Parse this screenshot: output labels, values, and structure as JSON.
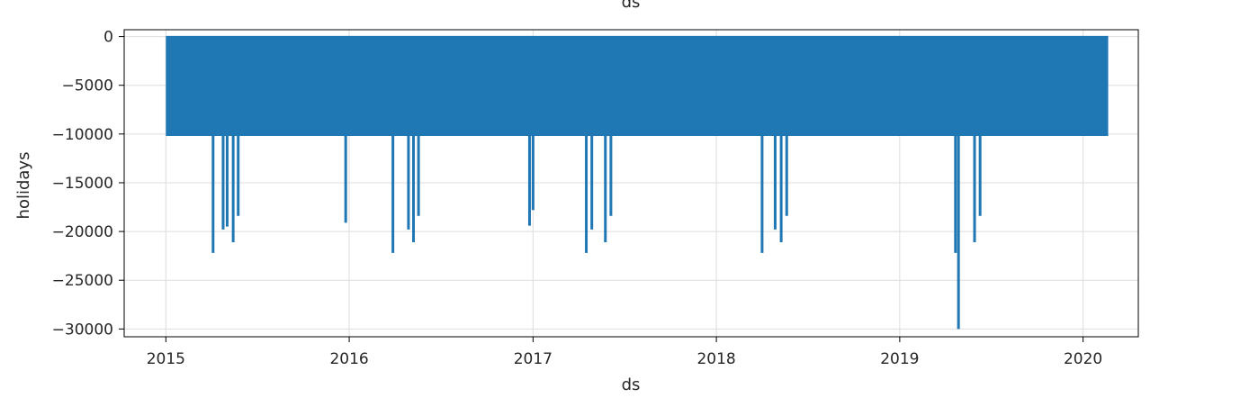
{
  "chart_data": {
    "type": "line",
    "title": "",
    "top_label": "ds",
    "xlabel": "ds",
    "ylabel": "holidays",
    "x_ticks": [
      "2015",
      "2016",
      "2017",
      "2018",
      "2019",
      "2020"
    ],
    "y_ticks": [
      "0",
      "−5000",
      "−10000",
      "−15000",
      "−20000",
      "−25000",
      "−30000"
    ],
    "y_tick_values": [
      0,
      -5000,
      -10000,
      -15000,
      -20000,
      -25000,
      -30000
    ],
    "xlim": [
      "2014-10-10",
      "2020-04-20"
    ],
    "ylim": [
      -30800,
      700
    ],
    "x_range": [
      "2015-01-01",
      "2020-02-20"
    ],
    "grid": true,
    "color": "#1f77b4",
    "series": [
      {
        "baseline": 0,
        "band_low": -10200,
        "spikes": [
          {
            "date": "2015-04-05",
            "value": -22200
          },
          {
            "date": "2015-04-25",
            "value": -19800
          },
          {
            "date": "2015-05-03",
            "value": -19500
          },
          {
            "date": "2015-05-15",
            "value": -21100
          },
          {
            "date": "2015-05-25",
            "value": -18400
          },
          {
            "date": "2015-12-25",
            "value": -19100
          },
          {
            "date": "2016-03-28",
            "value": -22200
          },
          {
            "date": "2016-04-28",
            "value": -19800
          },
          {
            "date": "2016-05-08",
            "value": -21100
          },
          {
            "date": "2016-05-18",
            "value": -18400
          },
          {
            "date": "2016-12-25",
            "value": -19400
          },
          {
            "date": "2017-01-01",
            "value": -17800
          },
          {
            "date": "2017-04-17",
            "value": -22200
          },
          {
            "date": "2017-04-28",
            "value": -19800
          },
          {
            "date": "2017-05-25",
            "value": -21100
          },
          {
            "date": "2017-06-05",
            "value": -18400
          },
          {
            "date": "2018-04-02",
            "value": -22200
          },
          {
            "date": "2018-04-28",
            "value": -19800
          },
          {
            "date": "2018-05-10",
            "value": -21100
          },
          {
            "date": "2018-05-21",
            "value": -18400
          },
          {
            "date": "2019-04-22",
            "value": -22200
          },
          {
            "date": "2019-04-28",
            "value": -30000
          },
          {
            "date": "2019-05-30",
            "value": -21100
          },
          {
            "date": "2019-06-10",
            "value": -18400
          }
        ]
      }
    ]
  }
}
